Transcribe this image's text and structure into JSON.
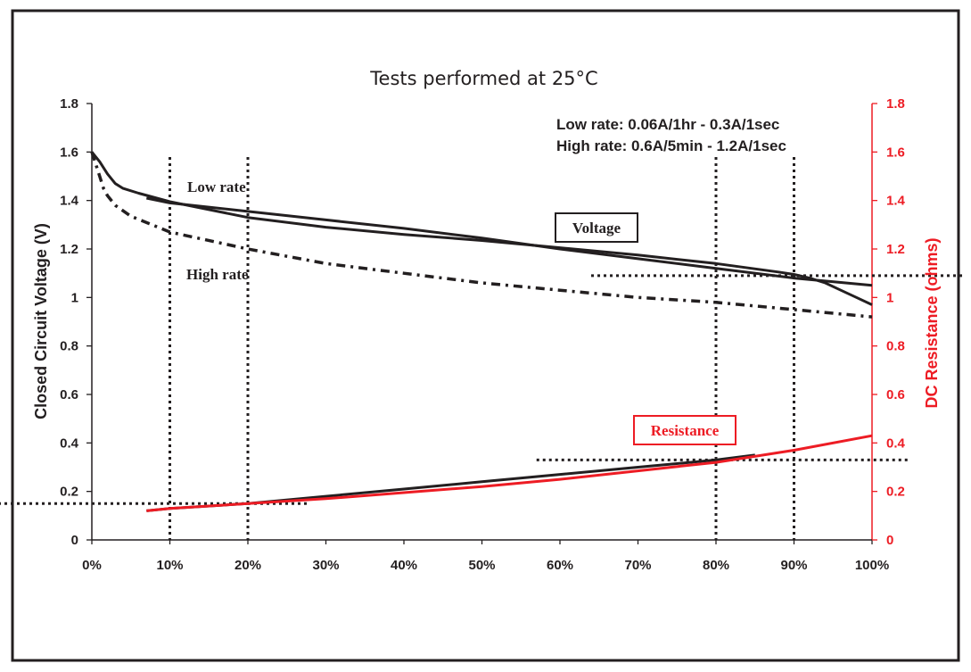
{
  "chart_data": {
    "type": "line",
    "title": "Tests performed at 25°C",
    "xlabel": "",
    "ylabel": "Closed Circuit Voltage  (V)",
    "ylabel_right": "DC Resistance (ohms)",
    "x_ticks": [
      "0%",
      "10%",
      "20%",
      "30%",
      "40%",
      "50%",
      "60%",
      "70%",
      "80%",
      "90%",
      "100%"
    ],
    "y_ticks": [
      "0",
      "0.2",
      "0.4",
      "0.6",
      "0.8",
      "1",
      "1.2",
      "1.4",
      "1.6",
      "1.8"
    ],
    "y2_ticks": [
      "0",
      "0.2",
      "0.4",
      "0.6",
      "0.8",
      "1",
      "1.2",
      "1.4",
      "1.6",
      "1.8"
    ],
    "xlim": [
      0,
      100
    ],
    "ylim": [
      0,
      1.8
    ],
    "y2lim": [
      0,
      1.8
    ],
    "legend_lines": [
      "Low rate: 0.06A/1hr - 0.3A/1sec",
      "High rate: 0.6A/5min - 1.2A/1sec"
    ],
    "annotations": {
      "low_rate": "Low rate",
      "high_rate": "High rate",
      "voltage": "Voltage",
      "resistance": "Resistance"
    },
    "series": [
      {
        "name": "Low rate voltage (upper)",
        "axis": "left",
        "style": "solid",
        "color": "#231f20",
        "x": [
          0,
          1,
          2,
          3,
          4,
          6,
          10,
          20,
          30,
          40,
          50,
          60,
          70,
          80,
          88,
          90,
          92,
          94,
          96,
          98,
          100
        ],
        "y": [
          1.6,
          1.56,
          1.51,
          1.47,
          1.45,
          1.43,
          1.395,
          1.33,
          1.29,
          1.26,
          1.235,
          1.205,
          1.175,
          1.14,
          1.105,
          1.095,
          1.08,
          1.06,
          1.03,
          1.0,
          0.97
        ]
      },
      {
        "name": "Low rate voltage (lower)",
        "axis": "left",
        "style": "solid",
        "color": "#231f20",
        "x": [
          7,
          10,
          20,
          30,
          40,
          50,
          60,
          70,
          80,
          90,
          100
        ],
        "y": [
          1.41,
          1.39,
          1.355,
          1.32,
          1.285,
          1.245,
          1.2,
          1.16,
          1.12,
          1.08,
          1.05
        ]
      },
      {
        "name": "High rate voltage",
        "axis": "left",
        "style": "dashed",
        "color": "#231f20",
        "x": [
          0,
          0.5,
          1,
          1.5,
          2,
          3,
          5,
          10,
          20,
          30,
          40,
          50,
          60,
          70,
          80,
          90,
          100
        ],
        "y": [
          1.6,
          1.55,
          1.5,
          1.45,
          1.42,
          1.38,
          1.335,
          1.27,
          1.2,
          1.14,
          1.1,
          1.06,
          1.03,
          1.0,
          0.98,
          0.95,
          0.92
        ]
      },
      {
        "name": "Resistance (black)",
        "axis": "right",
        "style": "solid",
        "color": "#231f20",
        "x": [
          7,
          10,
          20,
          30,
          40,
          50,
          60,
          70,
          80,
          85
        ],
        "y": [
          0.12,
          0.13,
          0.15,
          0.18,
          0.21,
          0.24,
          0.27,
          0.3,
          0.33,
          0.35
        ]
      },
      {
        "name": "Resistance (red)",
        "axis": "right",
        "style": "solid",
        "color": "#ed1c24",
        "x": [
          7,
          10,
          20,
          30,
          40,
          50,
          60,
          70,
          80,
          90,
          100
        ],
        "y": [
          0.12,
          0.13,
          0.15,
          0.17,
          0.195,
          0.22,
          0.25,
          0.285,
          0.32,
          0.37,
          0.43
        ]
      }
    ],
    "reference_lines": {
      "vertical_x": [
        10,
        20,
        80,
        90
      ],
      "horizontal": [
        {
          "axis": "left",
          "y": 1.09,
          "x_from": 64,
          "x_to": 112
        },
        {
          "axis": "left",
          "y": 0.15,
          "x_from": -12,
          "x_to": 28
        },
        {
          "axis": "left",
          "y": 0.33,
          "x_from": 57,
          "x_to": 105
        }
      ]
    },
    "grid": false,
    "colors": {
      "axis_left": "#231f20",
      "axis_right": "#ed1c24",
      "text": "#231f20",
      "frame": "#231f20"
    }
  }
}
